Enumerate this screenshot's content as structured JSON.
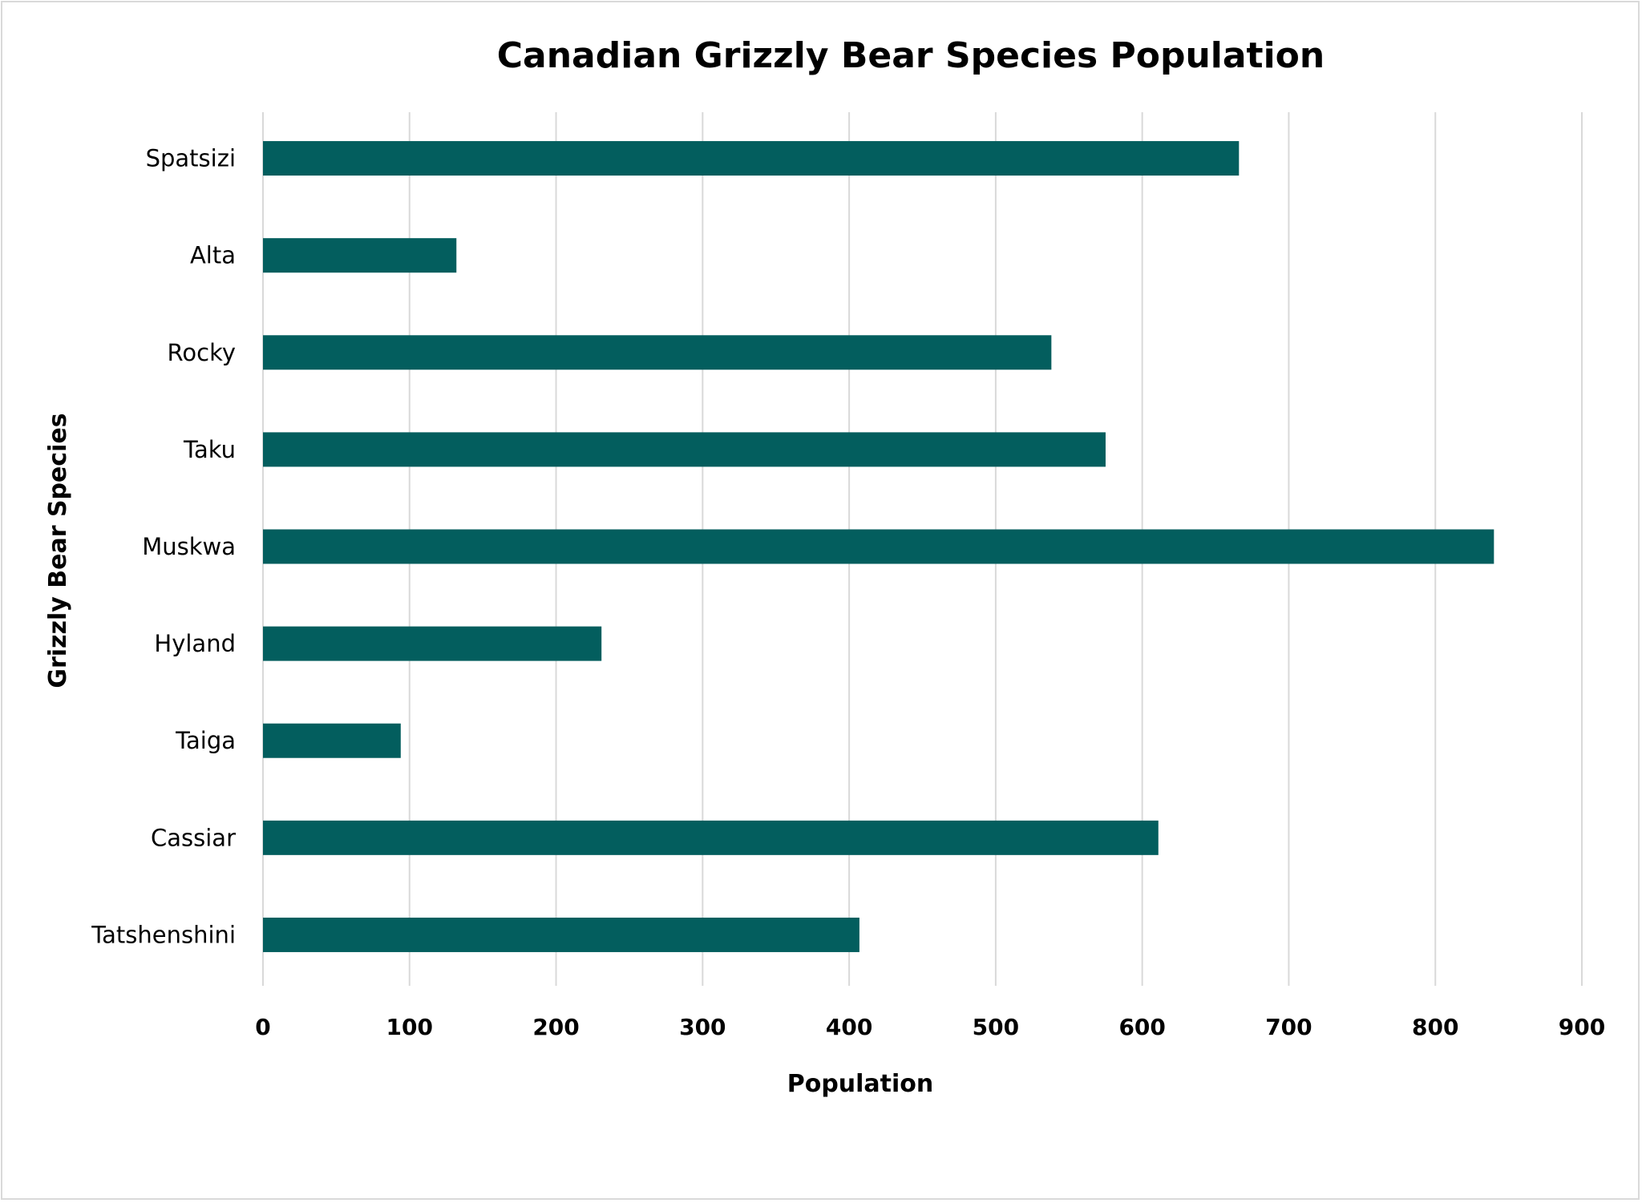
{
  "chart_data": {
    "type": "bar",
    "orientation": "horizontal",
    "title": "Canadian Grizzly Bear Species Population",
    "xlabel": "Population",
    "ylabel": "Grizzly Bear Species",
    "categories": [
      "Spatsizi",
      "Alta",
      "Rocky",
      "Taku",
      "Muskwa",
      "Hyland",
      "Taiga",
      "Cassiar",
      "Tatshenshini"
    ],
    "values": [
      666,
      132,
      538,
      575,
      840,
      231,
      94,
      611,
      407
    ],
    "xlim": [
      0,
      900
    ],
    "xticks": [
      0,
      100,
      200,
      300,
      400,
      500,
      600,
      700,
      800,
      900
    ],
    "grid": true,
    "legend": "none",
    "bar_color": "#035E5E",
    "grid_color": "#D9D9D9"
  }
}
